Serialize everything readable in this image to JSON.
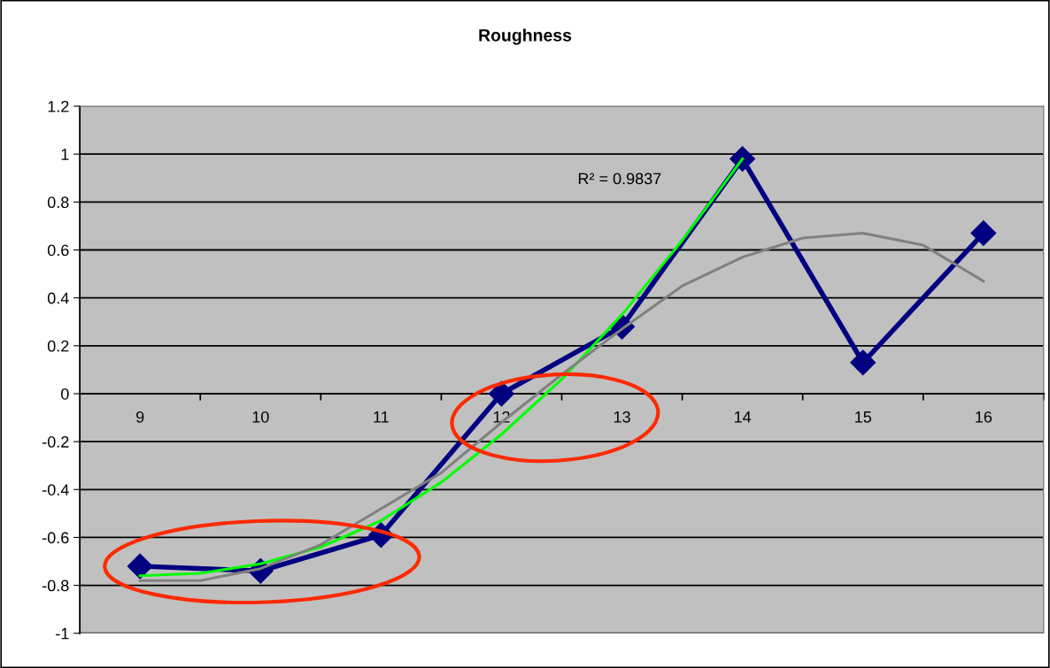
{
  "chart_data": {
    "type": "line",
    "title": "Roughness",
    "x": [
      9,
      10,
      11,
      12,
      13,
      14,
      15,
      16
    ],
    "xlim": [
      8.5,
      16.5
    ],
    "xticks": [
      9,
      10,
      11,
      12,
      13,
      14,
      15,
      16
    ],
    "ylim": [
      -1,
      1.2
    ],
    "yticks": [
      -1,
      -0.8,
      -0.6,
      -0.4,
      -0.2,
      0,
      0.2,
      0.4,
      0.6,
      0.8,
      1,
      1.2
    ],
    "grid": "y",
    "legend": false,
    "annotations": [
      "R² = 0.9837"
    ],
    "series": [
      {
        "color": "#000080",
        "marker": "diamond",
        "values": [
          -0.72,
          -0.74,
          -0.59,
          0.0,
          0.28,
          0.98,
          0.13,
          0.67
        ]
      },
      {
        "color": "#00ff00",
        "marker": "none",
        "x": [
          9,
          9.5,
          10,
          10.5,
          11,
          11.5,
          12,
          12.5,
          13,
          13.5,
          14
        ],
        "values": [
          -0.76,
          -0.75,
          -0.71,
          -0.64,
          -0.53,
          -0.37,
          -0.17,
          0.06,
          0.33,
          0.64,
          0.98
        ]
      },
      {
        "color": "#808080",
        "marker": "none",
        "x": [
          9,
          9.5,
          10,
          10.5,
          11,
          11.5,
          12,
          12.5,
          13,
          13.5,
          14,
          14.5,
          15,
          15.5,
          16
        ],
        "values": [
          -0.78,
          -0.78,
          -0.73,
          -0.63,
          -0.48,
          -0.33,
          -0.12,
          0.08,
          0.27,
          0.45,
          0.57,
          0.65,
          0.67,
          0.62,
          0.47
        ]
      }
    ]
  }
}
